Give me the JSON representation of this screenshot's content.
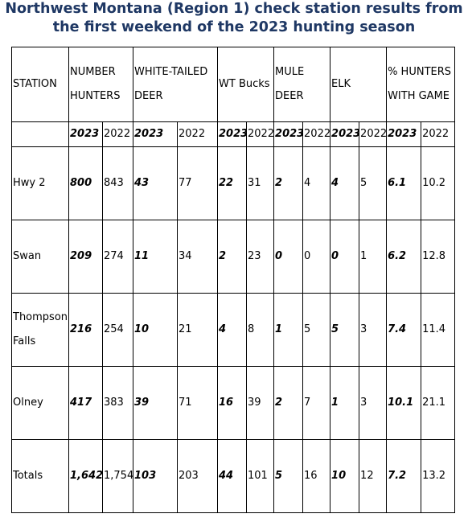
{
  "header": {
    "title": [
      "Northwest Montana (Region 1) check station results from",
      "the first weekend of the 2023 hunting season"
    ]
  },
  "table": {
    "group_headers": [
      "STATION",
      "NUMBER HUNTERS",
      "WHITE-TAILED DEER",
      "WT Bucks",
      "MULE DEER",
      "ELK",
      "% HUNTERS WITH GAME"
    ],
    "years": [
      "2023",
      "2022"
    ],
    "rows": [
      [
        "Hwy 2",
        "800",
        "843",
        "43",
        "77",
        "22",
        "31",
        "2",
        "4",
        "4",
        "5",
        "6.1",
        "10.2"
      ],
      [
        "Swan",
        "209",
        "274",
        "11",
        "34",
        "2",
        "23",
        "0",
        "0",
        "0",
        "1",
        "6.2",
        "12.8"
      ],
      [
        "Thompson Falls",
        "216",
        "254",
        "10",
        "21",
        "4",
        "8",
        "1",
        "5",
        "5",
        "3",
        "7.4",
        "11.4"
      ],
      [
        "Olney",
        "417",
        "383",
        "39",
        "71",
        "16",
        "39",
        "2",
        "7",
        "1",
        "3",
        "10.1",
        "21.1"
      ],
      [
        "Totals",
        "1,642",
        "1,754",
        "103",
        "203",
        "44",
        "101",
        "5",
        "16",
        "10",
        "12",
        "7.2",
        "13.2"
      ]
    ]
  }
}
